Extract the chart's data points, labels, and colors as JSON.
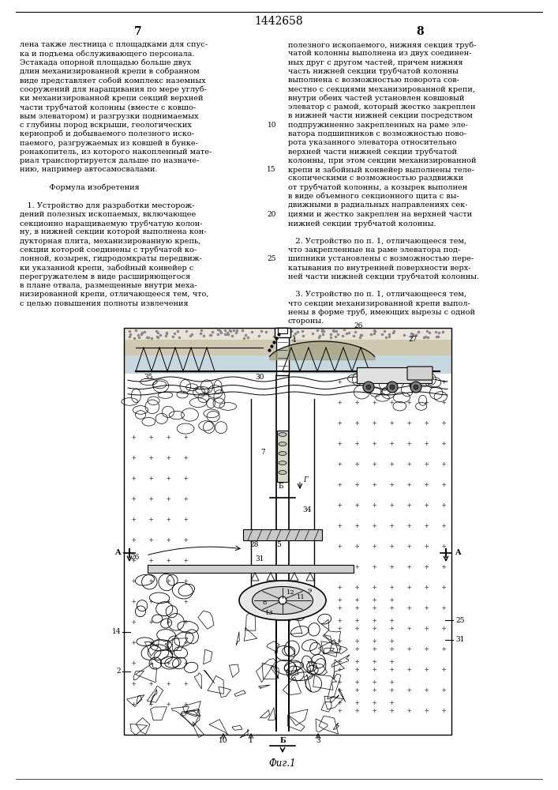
{
  "page_width": 7.07,
  "page_height": 10.0,
  "background_color": "#ffffff",
  "patent_number": "1442658",
  "page_num_left": "7",
  "page_num_right": "8",
  "left_col_lines": [
    "лена также лестница с площадками для спус-",
    "ка и подъема обслуживающего персонала.",
    "Эстакада опорной площадью больше двух",
    "длин механизированной крепи в собранном",
    "виде представляет собой комплекс наземных",
    "сооружений для наращивания по мере углуб-",
    "ки механизированной крепи секций верхней",
    "части трубчатой колонны (вместе с ковшо-",
    "вым элеватором) и разгрузки поднимаемых",
    "с глубины пород вскрыши, геологических",
    "кернопроб и добываемого полезного иско-",
    "паемого, разгружаемых из ковшей в бунке-",
    "ронакопитель, из которого накопленный мате-",
    "риал транспортируется дальше по назначе-",
    "нию, например автосамосвалами.",
    "",
    "            Формула изобретения",
    "",
    "   1. Устройство для разработки месторож-",
    "дений полезных ископаемых, включающее",
    "секционно наращиваемую трубчатую колон-",
    "ну, в нижней секции которой выполнена кон-",
    "дукторная плита, механизированную крепь,",
    "секции которой соединены с трубчатой ко-",
    "лонной, козырек, гидродомкраты передвиж-",
    "ки указанной крепи, забойный конвейер с",
    "перегружателем в виде расширяющегося",
    "в плане отвала, размещенные внутри меха-",
    "низированной крепи, отличающееся тем, что,",
    "с целью повышения полноты извлечения"
  ],
  "right_col_lines": [
    "полезного ископаемого, нижняя секция труб-",
    "чатой колонны выполнена из двух соединен-",
    "ных друг с другом частей, причем нижняя",
    "часть нижней секции трубчатой колонны",
    "выполнена с возможностью поворота сов-",
    "местно с секциями механизированной крепи,",
    "внутри обеих частей установлен ковшовый",
    "элеватор с рамой, который жестко закреплен",
    "в нижней части нижней секции посредством",
    "подпружиненно закрепленных на раме эле-",
    "ватора подшипников с возможностью пово-",
    "рота указанного элеватора относительно",
    "верхней части нижней секции трубчатой",
    "колонны, при этом секции механизированной",
    "крепи и забойный конвейер выполнены теле-",
    "скопическими с возможностью раздвижки",
    "от трубчатой колонны, а козырек выполнен",
    "в виде объемного секционного щита с вы-",
    "движными в радиальных направлениях сек-",
    "циями и жестко закреплен на верхней части",
    "нижней секции трубчатой колонны.",
    "",
    "   2. Устройство по п. 1, отличающееся тем,",
    "что закрепленные на раме элеватора под-",
    "шипники установлены с возможностью пере-",
    "катывания по внутренней поверхности верх-",
    "ней части нижней секции трубчатой колонны.",
    "",
    "   3. Устройство по п. 1, отличающееся тем,",
    "что секции механизированной крепи выпол-",
    "нены в форме труб, имеющих вырезы с одной",
    "стороны."
  ],
  "line_nums": [
    [
      10,
      9
    ],
    [
      15,
      14
    ],
    [
      20,
      19
    ],
    [
      25,
      24
    ]
  ],
  "fig_caption": "Фиг.1"
}
